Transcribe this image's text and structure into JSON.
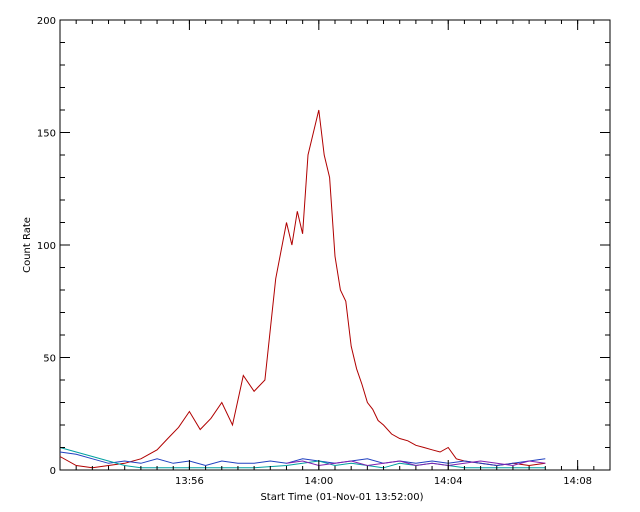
{
  "chart_data": {
    "type": "line",
    "title": "",
    "xlabel": "Start Time (01-Nov-01 13:52:00)",
    "ylabel": "Count Rate",
    "x_unit": "time",
    "xlim": [
      "13:52:00",
      "14:09:00"
    ],
    "ylim": [
      0,
      200
    ],
    "x_ticks": [
      "13:56",
      "14:00",
      "14:04",
      "14:08"
    ],
    "y_ticks": [
      0,
      50,
      100,
      150,
      200
    ],
    "grid": false,
    "legend": "none",
    "series": [
      {
        "color": "#b00000",
        "x": [
          "13:52:00",
          "13:52:30",
          "13:53:00",
          "13:53:30",
          "13:54:00",
          "13:54:30",
          "13:55:00",
          "13:55:20",
          "13:55:40",
          "13:56:00",
          "13:56:20",
          "13:56:40",
          "13:57:00",
          "13:57:20",
          "13:57:40",
          "13:58:00",
          "13:58:20",
          "13:58:40",
          "13:59:00",
          "13:59:10",
          "13:59:20",
          "13:59:30",
          "13:59:40",
          "13:59:50",
          "14:00:00",
          "14:00:10",
          "14:00:20",
          "14:00:30",
          "14:00:40",
          "14:00:50",
          "14:01:00",
          "14:01:10",
          "14:01:20",
          "14:01:30",
          "14:01:40",
          "14:01:50",
          "14:02:00",
          "14:02:15",
          "14:02:30",
          "14:02:45",
          "14:03:00",
          "14:03:15",
          "14:03:30",
          "14:03:45",
          "14:04:00",
          "14:04:15",
          "14:04:30",
          "14:05:00",
          "14:05:30",
          "14:06:00",
          "14:06:30",
          "14:07:00"
        ],
        "values": [
          6,
          2,
          1,
          2,
          3,
          5,
          9,
          14,
          19,
          26,
          18,
          23,
          30,
          20,
          42,
          35,
          40,
          85,
          110,
          100,
          115,
          105,
          140,
          150,
          160,
          140,
          130,
          95,
          80,
          75,
          55,
          45,
          38,
          30,
          27,
          22,
          20,
          16,
          14,
          13,
          11,
          10,
          9,
          8,
          10,
          5,
          4,
          3,
          2,
          3,
          2,
          3
        ]
      },
      {
        "color": "#2040c0",
        "x": [
          "13:52:00",
          "13:52:30",
          "13:53:00",
          "13:53:30",
          "13:54:00",
          "13:54:30",
          "13:55:00",
          "13:55:30",
          "13:56:00",
          "13:56:30",
          "13:57:00",
          "13:57:30",
          "13:58:00",
          "13:58:30",
          "13:59:00",
          "13:59:30",
          "14:00:00",
          "14:00:30",
          "14:01:00",
          "14:01:30",
          "14:02:00",
          "14:02:30",
          "14:03:00",
          "14:03:30",
          "14:04:00",
          "14:04:30",
          "14:05:00",
          "14:05:30",
          "14:06:00",
          "14:06:30",
          "14:07:00"
        ],
        "values": [
          8,
          7,
          5,
          3,
          4,
          3,
          5,
          3,
          4,
          2,
          4,
          3,
          3,
          4,
          3,
          5,
          4,
          3,
          4,
          5,
          3,
          4,
          3,
          4,
          3,
          4,
          3,
          2,
          3,
          4,
          5
        ]
      },
      {
        "color": "#00a0a0",
        "x": [
          "13:52:00",
          "13:52:30",
          "13:53:00",
          "13:53:30",
          "13:54:00",
          "13:54:30",
          "13:55:00",
          "13:56:00",
          "13:57:00",
          "13:58:00",
          "13:59:00",
          "13:59:30",
          "14:00:00",
          "14:00:30",
          "14:01:00",
          "14:01:30",
          "14:02:00",
          "14:02:30",
          "14:03:00",
          "14:03:30",
          "14:04:00",
          "14:04:30",
          "14:05:00",
          "14:06:00",
          "14:07:00"
        ],
        "values": [
          10,
          8,
          6,
          4,
          2,
          1,
          1,
          1,
          1,
          1,
          2,
          3,
          4,
          2,
          3,
          2,
          1,
          3,
          2,
          3,
          2,
          1,
          1,
          1,
          1
        ]
      },
      {
        "color": "#8020b0",
        "x": [
          "13:59:00",
          "13:59:30",
          "14:00:00",
          "14:00:30",
          "14:01:00",
          "14:01:30",
          "14:02:00",
          "14:02:30",
          "14:03:00",
          "14:03:30",
          "14:04:00",
          "14:04:30",
          "14:05:00",
          "14:05:30",
          "14:06:00",
          "14:06:30",
          "14:07:00"
        ],
        "values": [
          3,
          4,
          2,
          3,
          4,
          2,
          3,
          4,
          2,
          3,
          2,
          3,
          4,
          3,
          2,
          4,
          3
        ]
      }
    ]
  }
}
